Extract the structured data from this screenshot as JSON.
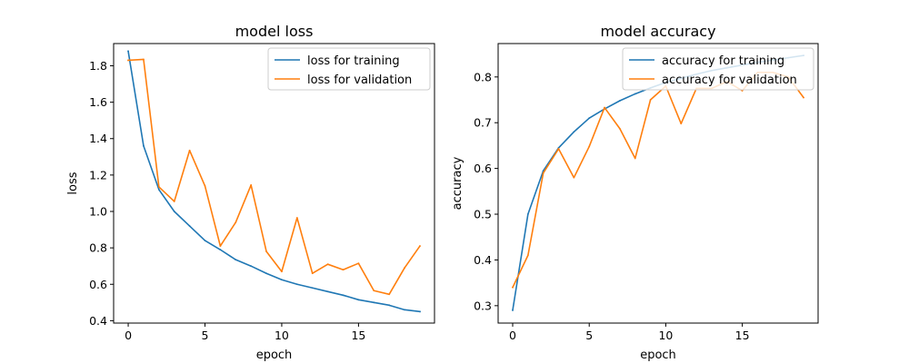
{
  "chart_data": [
    {
      "type": "line",
      "title": "model loss",
      "xlabel": "epoch",
      "ylabel": "loss",
      "x": [
        0,
        1,
        2,
        3,
        4,
        5,
        6,
        7,
        8,
        9,
        10,
        11,
        12,
        13,
        14,
        15,
        16,
        17,
        18,
        19
      ],
      "xlim": [
        -0.95,
        19.95
      ],
      "ylim": [
        0.387,
        1.922
      ],
      "xticks": [
        0,
        5,
        10,
        15
      ],
      "yticks": [
        0.4,
        0.6,
        0.8,
        1.0,
        1.2,
        1.4,
        1.6,
        1.8
      ],
      "ytick_labels": [
        "0.4",
        "0.6",
        "0.8",
        "1.0",
        "1.2",
        "1.4",
        "1.6",
        "1.8"
      ],
      "grid": false,
      "legend_position": "top-right",
      "series": [
        {
          "name": "loss for training",
          "color": "#1f77b4",
          "values": [
            1.88,
            1.36,
            1.12,
            1.0,
            0.92,
            0.84,
            0.79,
            0.735,
            0.7,
            0.66,
            0.625,
            0.6,
            0.58,
            0.56,
            0.54,
            0.515,
            0.5,
            0.485,
            0.46,
            0.45
          ]
        },
        {
          "name": "loss for validation",
          "color": "#ff7f0e",
          "values": [
            1.83,
            1.835,
            1.135,
            1.055,
            1.335,
            1.14,
            0.81,
            0.94,
            1.145,
            0.78,
            0.67,
            0.965,
            0.66,
            0.71,
            0.68,
            0.715,
            0.565,
            0.545,
            0.69,
            0.81
          ]
        }
      ]
    },
    {
      "type": "line",
      "title": "model accuracy",
      "xlabel": "epoch",
      "ylabel": "accuracy",
      "x": [
        0,
        1,
        2,
        3,
        4,
        5,
        6,
        7,
        8,
        9,
        10,
        11,
        12,
        13,
        14,
        15,
        16,
        17,
        18,
        19
      ],
      "xlim": [
        -0.95,
        19.95
      ],
      "ylim": [
        0.262,
        0.873
      ],
      "xticks": [
        0,
        5,
        10,
        15
      ],
      "yticks": [
        0.3,
        0.4,
        0.5,
        0.6,
        0.7,
        0.8
      ],
      "ytick_labels": [
        "0.3",
        "0.4",
        "0.5",
        "0.6",
        "0.7",
        "0.8"
      ],
      "grid": false,
      "legend_position": "top-right",
      "series": [
        {
          "name": "accuracy for training",
          "color": "#1f77b4",
          "values": [
            0.29,
            0.5,
            0.595,
            0.645,
            0.68,
            0.71,
            0.73,
            0.748,
            0.763,
            0.776,
            0.788,
            0.797,
            0.806,
            0.814,
            0.82,
            0.826,
            0.832,
            0.837,
            0.842,
            0.847
          ]
        },
        {
          "name": "accuracy for validation",
          "color": "#ff7f0e",
          "values": [
            0.34,
            0.41,
            0.59,
            0.643,
            0.58,
            0.648,
            0.733,
            0.687,
            0.622,
            0.75,
            0.78,
            0.698,
            0.775,
            0.775,
            0.79,
            0.77,
            0.81,
            0.81,
            0.8,
            0.755
          ]
        }
      ]
    }
  ]
}
